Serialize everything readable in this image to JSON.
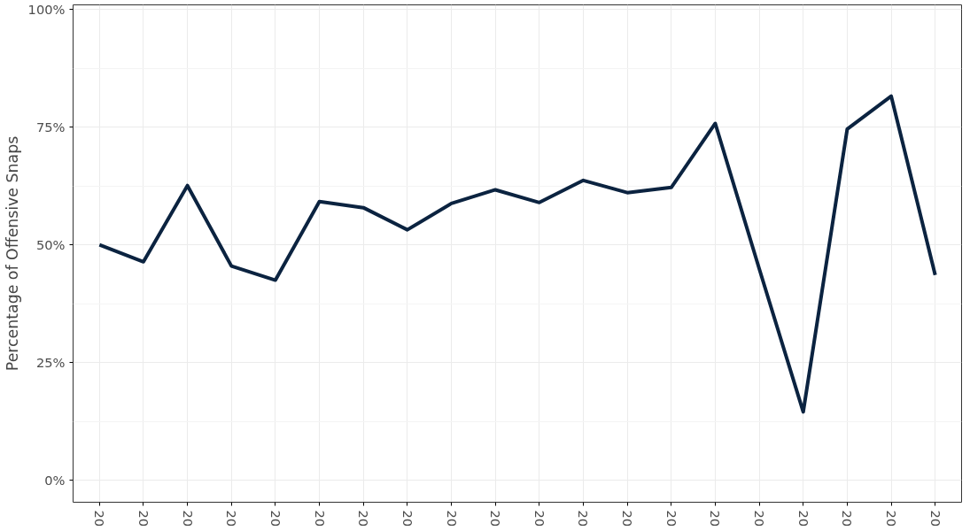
{
  "chart_data": {
    "type": "line",
    "ylabel": "Percentage of Offensive Snaps",
    "categories": [
      "20",
      "20",
      "20",
      "20",
      "20",
      "20",
      "20",
      "20",
      "20",
      "20",
      "20",
      "20",
      "20",
      "20",
      "20",
      "20",
      "20",
      "20",
      "20",
      "20"
    ],
    "series": [
      {
        "color": "#0b2340",
        "values": [
          50.0,
          46.4,
          62.6,
          45.5,
          42.5,
          59.2,
          57.9,
          53.2,
          58.8,
          61.7,
          59.0,
          63.7,
          61.1,
          62.2,
          75.8,
          44.9,
          14.5,
          74.6,
          81.6,
          43.6
        ]
      }
    ],
    "ylim": [
      -4.7,
      101
    ],
    "yticks": [
      {
        "value": 0,
        "label": "0%"
      },
      {
        "value": 25,
        "label": "25%"
      },
      {
        "value": 50,
        "label": "50%"
      },
      {
        "value": 75,
        "label": "75%"
      },
      {
        "value": 100,
        "label": "100%"
      }
    ],
    "grid": true,
    "marker": "none",
    "line_style": "solid"
  }
}
